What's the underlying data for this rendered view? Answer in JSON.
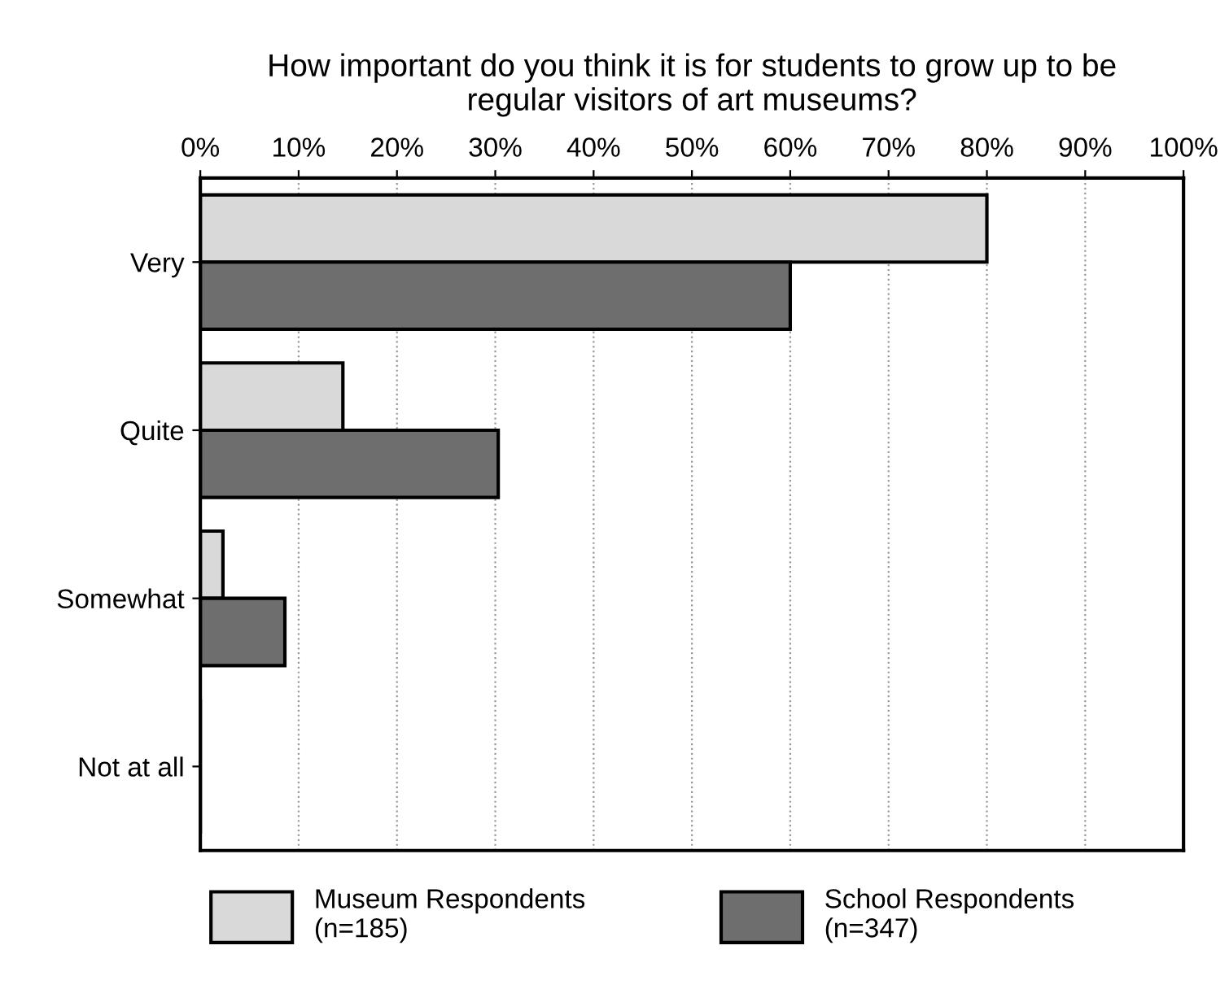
{
  "chart_data": {
    "type": "bar",
    "orientation": "horizontal",
    "title": "How important do you think it is for students to grow up to be\nregular visitors of art museums?",
    "categories": [
      "Very",
      "Quite",
      "Somewhat",
      "Not at all"
    ],
    "series": [
      {
        "name": "Museum Respondents\n(n=185)",
        "color": "#d9d9d9",
        "values": [
          80,
          14.5,
          2.3,
          0
        ]
      },
      {
        "name": "School Respondents\n(n=347)",
        "color": "#6e6e6e",
        "values": [
          60,
          30.3,
          8.6,
          0
        ]
      }
    ],
    "xlim": [
      0,
      100
    ],
    "xticks": [
      {
        "value": 0,
        "label": "0%"
      },
      {
        "value": 10,
        "label": "10%"
      },
      {
        "value": 20,
        "label": "20%"
      },
      {
        "value": 30,
        "label": "30%"
      },
      {
        "value": 40,
        "label": "40%"
      },
      {
        "value": 50,
        "label": "50%"
      },
      {
        "value": 60,
        "label": "60%"
      },
      {
        "value": 70,
        "label": "70%"
      },
      {
        "value": 80,
        "label": "80%"
      },
      {
        "value": 90,
        "label": "90%"
      },
      {
        "value": 100,
        "label": "100%"
      }
    ],
    "grid": "x",
    "legend": "bottom"
  }
}
